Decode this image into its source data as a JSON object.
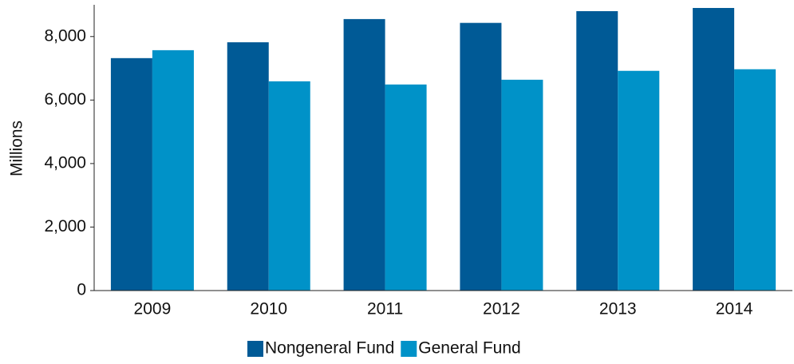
{
  "chart_data": {
    "type": "bar",
    "y_label": "Millions",
    "categories": [
      "2009",
      "2010",
      "2011",
      "2012",
      "2013",
      "2014"
    ],
    "series": [
      {
        "name": "Nongeneral Fund",
        "color": "#005a96",
        "values": [
          7320,
          7820,
          8550,
          8430,
          8800,
          8900
        ]
      },
      {
        "name": "General Fund",
        "color": "#0092c8",
        "values": [
          7570,
          6590,
          6490,
          6640,
          6920,
          6970
        ]
      }
    ],
    "ylim": [
      0,
      9000
    ],
    "yticks": [
      0,
      {
        "value": 2000,
        "label": "2,000"
      },
      {
        "value": 4000,
        "label": "4,000"
      },
      {
        "value": 6000,
        "label": "6,000"
      },
      {
        "value": 8000,
        "label": "8,000"
      }
    ],
    "grid": false,
    "legend": "bottom"
  }
}
